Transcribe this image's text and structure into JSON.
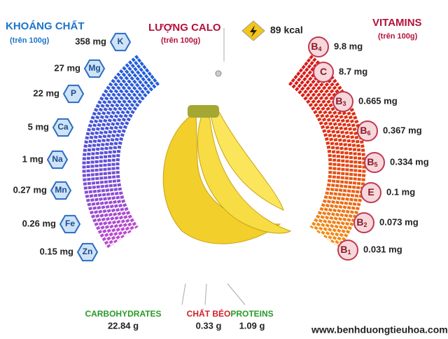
{
  "header": {
    "minerals_title": "KHOÁNG CHẤT",
    "minerals_sub": "(trên 100g)",
    "calo_title": "LƯỢNG CALO",
    "calo_sub": "(trên 100g)",
    "calo_value": "89 kcal",
    "vitamins_title": "VITAMINS",
    "vitamins_sub": "(trên 100g)"
  },
  "minerals": [
    {
      "symbol": "K",
      "amount": "358 mg"
    },
    {
      "symbol": "Mg",
      "amount": "27 mg"
    },
    {
      "symbol": "P",
      "amount": "22 mg"
    },
    {
      "symbol": "Ca",
      "amount": "5 mg"
    },
    {
      "symbol": "Na",
      "amount": "1 mg"
    },
    {
      "symbol": "Mn",
      "amount": "0.27 mg"
    },
    {
      "symbol": "Fe",
      "amount": "0.26 mg"
    },
    {
      "symbol": "Zn",
      "amount": "0.15 mg"
    }
  ],
  "vitamins": [
    {
      "letter": "B",
      "sub": "4",
      "amount": "9.8 mg"
    },
    {
      "letter": "C",
      "amount": "8.7 mg"
    },
    {
      "letter": "B",
      "sub": "3",
      "amount": "0.665 mg"
    },
    {
      "letter": "B",
      "sub": "6",
      "amount": "0.367 mg"
    },
    {
      "letter": "B",
      "sub": "5",
      "amount": "0.334 mg"
    },
    {
      "letter": "E",
      "amount": "0.1 mg"
    },
    {
      "letter": "B",
      "sub": "2",
      "amount": "0.073 mg"
    },
    {
      "letter": "B",
      "sub": "1",
      "amount": "0.031 mg"
    }
  ],
  "macros": [
    {
      "name": "CARBOHYDRATES",
      "amount": "22.84 g"
    },
    {
      "name": "CHẤT BÉO",
      "amount": "0.33 g"
    },
    {
      "name": "PROTEINS",
      "amount": "1.09 g"
    }
  ],
  "footer": {
    "website": "www.benhduongtieuhoa.com"
  }
}
